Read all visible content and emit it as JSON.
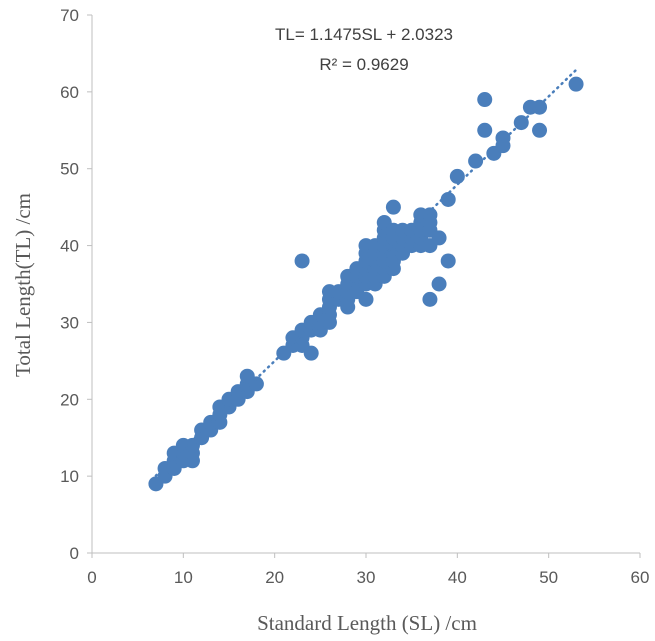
{
  "chart_data": {
    "type": "scatter",
    "xlabel": "Standard Length (SL) /cm",
    "ylabel": "Total Length(TL) /cm",
    "xlim": [
      0,
      60
    ],
    "ylim": [
      0,
      70
    ],
    "xticks": [
      "0",
      "10",
      "20",
      "30",
      "40",
      "50",
      "60"
    ],
    "yticks": [
      "0",
      "10",
      "20",
      "30",
      "40",
      "50",
      "60",
      "70"
    ],
    "grid": false,
    "marker_color": "#4A7EBB",
    "trendline": {
      "type": "linear",
      "style": "dotted",
      "slope": 1.1475,
      "intercept": 2.0323,
      "x_range": [
        7,
        53
      ],
      "equation_label": "TL= 1.1475SL + 2.0323",
      "r2_label": "R² = 0.9629"
    },
    "points": [
      [
        7,
        9
      ],
      [
        8,
        10
      ],
      [
        8,
        11
      ],
      [
        9,
        11
      ],
      [
        9,
        12
      ],
      [
        9,
        13
      ],
      [
        10,
        12
      ],
      [
        10,
        13
      ],
      [
        10,
        14
      ],
      [
        11,
        12
      ],
      [
        11,
        13
      ],
      [
        11,
        14
      ],
      [
        12,
        15
      ],
      [
        12,
        16
      ],
      [
        13,
        16
      ],
      [
        13,
        17
      ],
      [
        14,
        17
      ],
      [
        14,
        18
      ],
      [
        14,
        19
      ],
      [
        15,
        19
      ],
      [
        15,
        20
      ],
      [
        16,
        20
      ],
      [
        16,
        21
      ],
      [
        17,
        21
      ],
      [
        17,
        22
      ],
      [
        17,
        23
      ],
      [
        18,
        22
      ],
      [
        21,
        26
      ],
      [
        22,
        27
      ],
      [
        22,
        28
      ],
      [
        23,
        27
      ],
      [
        23,
        28
      ],
      [
        23,
        29
      ],
      [
        23,
        38
      ],
      [
        24,
        26
      ],
      [
        24,
        29
      ],
      [
        24,
        30
      ],
      [
        25,
        29
      ],
      [
        25,
        30
      ],
      [
        25,
        31
      ],
      [
        26,
        30
      ],
      [
        26,
        31
      ],
      [
        26,
        32
      ],
      [
        26,
        33
      ],
      [
        26,
        34
      ],
      [
        27,
        33
      ],
      [
        27,
        34
      ],
      [
        28,
        32
      ],
      [
        28,
        33
      ],
      [
        28,
        34
      ],
      [
        28,
        35
      ],
      [
        28,
        36
      ],
      [
        29,
        34
      ],
      [
        29,
        35
      ],
      [
        29,
        36
      ],
      [
        29,
        37
      ],
      [
        30,
        33
      ],
      [
        30,
        35
      ],
      [
        30,
        36
      ],
      [
        30,
        37
      ],
      [
        30,
        38
      ],
      [
        30,
        39
      ],
      [
        30,
        40
      ],
      [
        31,
        35
      ],
      [
        31,
        36
      ],
      [
        31,
        37
      ],
      [
        31,
        38
      ],
      [
        31,
        39
      ],
      [
        31,
        40
      ],
      [
        32,
        36
      ],
      [
        32,
        37
      ],
      [
        32,
        38
      ],
      [
        32,
        39
      ],
      [
        32,
        40
      ],
      [
        32,
        41
      ],
      [
        32,
        42
      ],
      [
        32,
        43
      ],
      [
        33,
        37
      ],
      [
        33,
        38
      ],
      [
        33,
        39
      ],
      [
        33,
        40
      ],
      [
        33,
        41
      ],
      [
        33,
        42
      ],
      [
        33,
        45
      ],
      [
        34,
        39
      ],
      [
        34,
        40
      ],
      [
        34,
        41
      ],
      [
        34,
        42
      ],
      [
        35,
        40
      ],
      [
        35,
        41
      ],
      [
        35,
        42
      ],
      [
        36,
        40
      ],
      [
        36,
        41
      ],
      [
        36,
        42
      ],
      [
        36,
        43
      ],
      [
        36,
        44
      ],
      [
        37,
        33
      ],
      [
        37,
        40
      ],
      [
        37,
        42
      ],
      [
        37,
        43
      ],
      [
        37,
        44
      ],
      [
        38,
        35
      ],
      [
        38,
        41
      ],
      [
        39,
        38
      ],
      [
        39,
        46
      ],
      [
        40,
        49
      ],
      [
        42,
        51
      ],
      [
        43,
        55
      ],
      [
        43,
        59
      ],
      [
        44,
        52
      ],
      [
        45,
        53
      ],
      [
        45,
        54
      ],
      [
        47,
        56
      ],
      [
        48,
        58
      ],
      [
        49,
        55
      ],
      [
        49,
        58
      ],
      [
        53,
        61
      ]
    ]
  }
}
